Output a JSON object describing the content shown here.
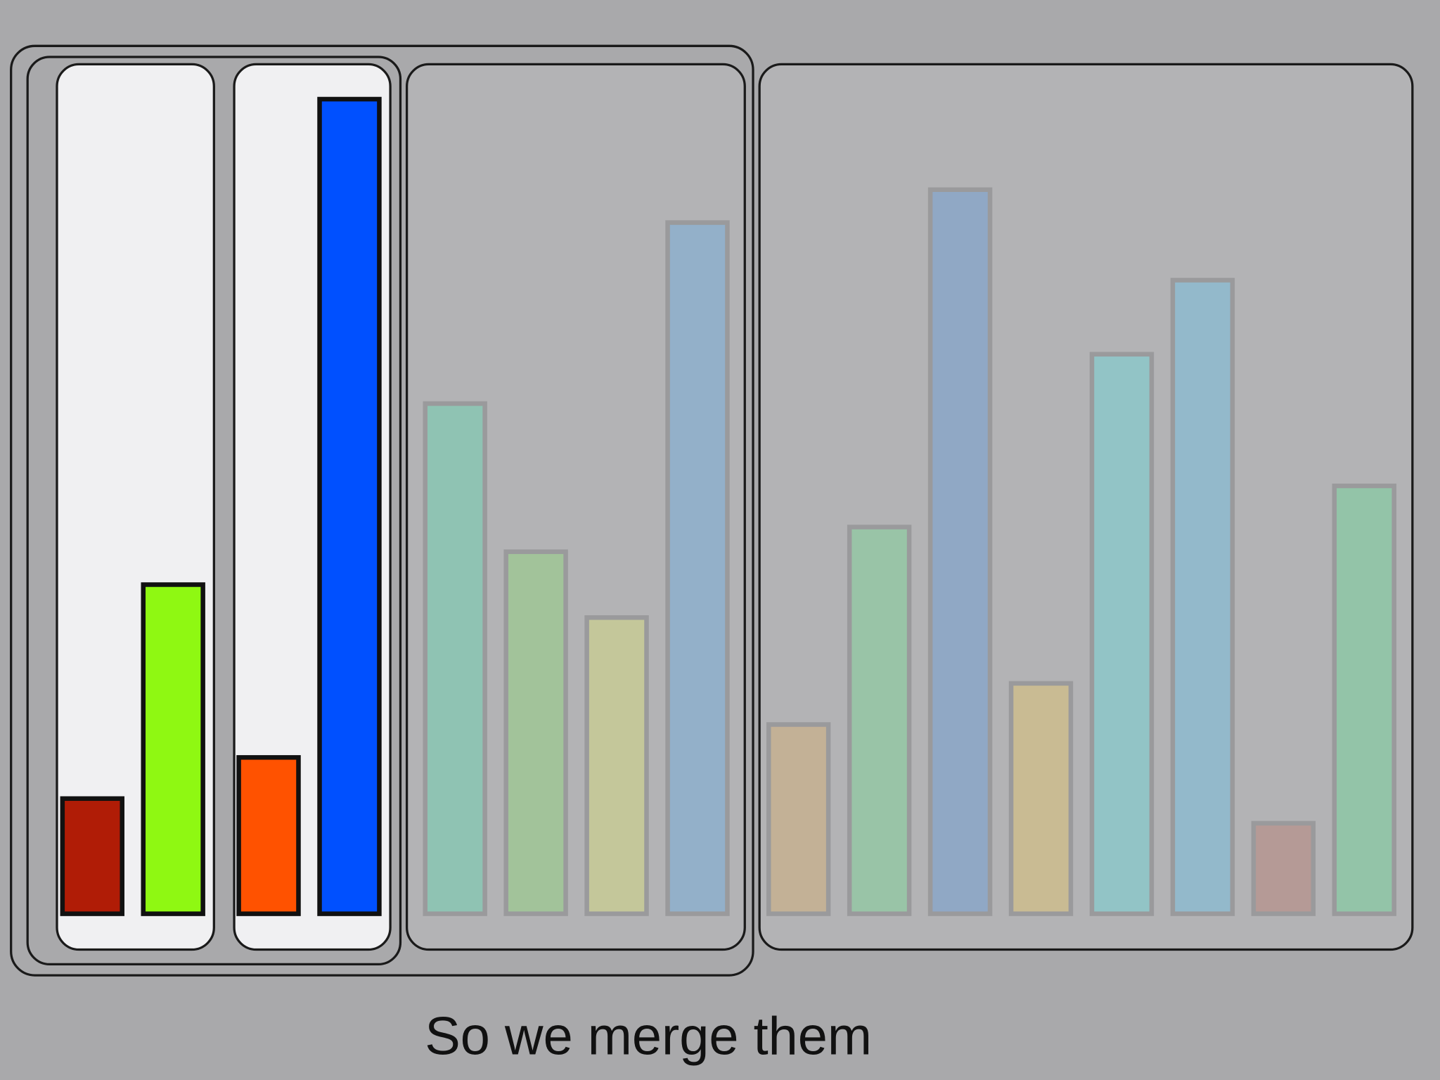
{
  "caption": "So we merge them",
  "groups": [
    {
      "active": true,
      "bars": [
        {
          "value": 14,
          "color": "#b01c06"
        },
        {
          "value": 40,
          "color": "#8ff812"
        }
      ]
    },
    {
      "active": true,
      "bars": [
        {
          "value": 19,
          "color": "#ff5200"
        },
        {
          "value": 99,
          "color": "#0050ff"
        }
      ]
    },
    {
      "active": false,
      "bars": [
        {
          "value": 62,
          "color": "#8fc3b3"
        },
        {
          "value": 44,
          "color": "#a2c39a"
        },
        {
          "value": 36,
          "color": "#c4c79a"
        },
        {
          "value": 84,
          "color": "#93b0c9"
        }
      ]
    },
    {
      "active": false,
      "bars": [
        {
          "value": 23,
          "color": "#c3b196"
        },
        {
          "value": 47,
          "color": "#99c4a7"
        },
        {
          "value": 88,
          "color": "#90a8c5"
        },
        {
          "value": 28,
          "color": "#c9bb93"
        },
        {
          "value": 68,
          "color": "#92c4c6"
        },
        {
          "value": 77,
          "color": "#93b9cb"
        },
        {
          "value": 11,
          "color": "#b59a96"
        },
        {
          "value": 52,
          "color": "#93c4a8"
        }
      ]
    }
  ]
}
